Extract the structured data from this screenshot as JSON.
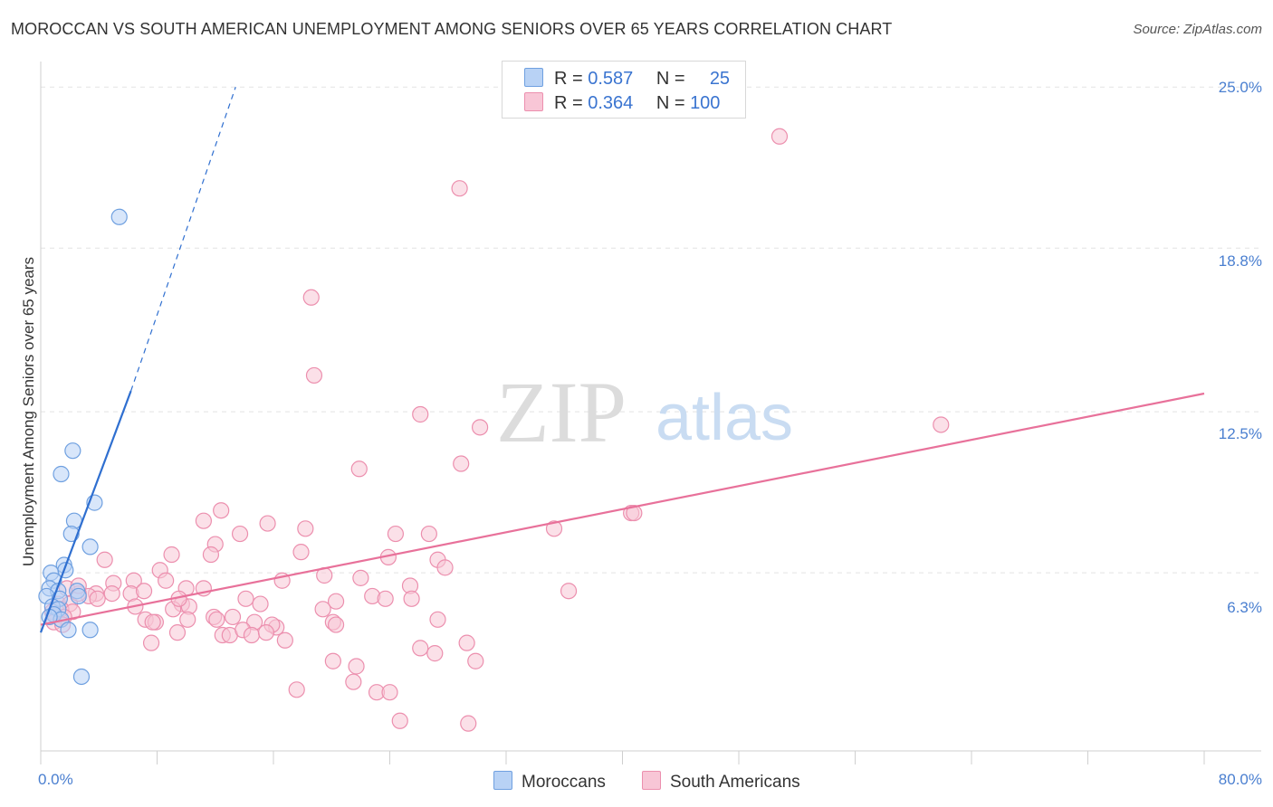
{
  "title": "MOROCCAN VS SOUTH AMERICAN UNEMPLOYMENT AMONG SENIORS OVER 65 YEARS CORRELATION CHART",
  "source": "Source: ZipAtlas.com",
  "watermark": {
    "zip": "ZIP",
    "atlas": "atlas"
  },
  "legend": {
    "r_label": "R =",
    "n_label": "N =",
    "moroccans": {
      "r": "0.587",
      "n": "25"
    },
    "south_americans": {
      "r": "0.364",
      "n": "100"
    }
  },
  "colors": {
    "moroccans_fill": "#b8d2f5",
    "moroccans_stroke": "#6fa0e0",
    "moroccans_line": "#2f6fd0",
    "south_americans_fill": "#f8c6d6",
    "south_americans_stroke": "#ec8fae",
    "south_americans_line": "#e8719a"
  },
  "chart_data": {
    "type": "scatter",
    "title": "MOROCCAN VS SOUTH AMERICAN UNEMPLOYMENT AMONG SENIORS OVER 65 YEARS CORRELATION CHART",
    "xlabel": "",
    "ylabel": "Unemployment Among Seniors over 65 years",
    "xlim": [
      0,
      80
    ],
    "ylim": [
      0,
      25.6
    ],
    "x_tick_labels": [
      "0.0%",
      "80.0%"
    ],
    "y_ticks": [
      6.3,
      12.5,
      18.8,
      25.0
    ],
    "y_tick_labels": [
      "6.3%",
      "12.5%",
      "18.8%",
      "25.0%"
    ],
    "legend_position": "bottom-center",
    "series": [
      {
        "name": "Moroccans",
        "r": 0.587,
        "n": 25,
        "trend": {
          "x0": 0,
          "y0": 4.0,
          "x1": 6.2,
          "y1": 13.3,
          "dash_x1": 13.4,
          "dash_y1": 25.0
        },
        "points": [
          [
            5.4,
            20.0
          ],
          [
            2.2,
            11.0
          ],
          [
            1.4,
            10.1
          ],
          [
            3.7,
            9.0
          ],
          [
            2.3,
            8.3
          ],
          [
            2.1,
            7.8
          ],
          [
            3.4,
            7.3
          ],
          [
            1.6,
            6.6
          ],
          [
            1.7,
            6.4
          ],
          [
            0.7,
            6.3
          ],
          [
            0.9,
            6.0
          ],
          [
            0.6,
            5.7
          ],
          [
            1.2,
            5.6
          ],
          [
            2.5,
            5.6
          ],
          [
            0.4,
            5.4
          ],
          [
            1.3,
            5.3
          ],
          [
            2.6,
            5.4
          ],
          [
            0.8,
            5.0
          ],
          [
            1.2,
            4.9
          ],
          [
            0.9,
            4.7
          ],
          [
            1.4,
            4.5
          ],
          [
            0.6,
            4.6
          ],
          [
            1.9,
            4.1
          ],
          [
            3.4,
            4.1
          ],
          [
            2.8,
            2.3
          ]
        ]
      },
      {
        "name": "South Americans",
        "r": 0.364,
        "n": 100,
        "trend": {
          "x0": 0,
          "y0": 4.3,
          "x1": 80,
          "y1": 13.2
        },
        "points": [
          [
            50.8,
            23.1
          ],
          [
            28.8,
            21.1
          ],
          [
            18.6,
            16.9
          ],
          [
            18.8,
            13.9
          ],
          [
            26.1,
            12.4
          ],
          [
            30.2,
            11.9
          ],
          [
            61.9,
            12.0
          ],
          [
            21.9,
            10.3
          ],
          [
            28.9,
            10.5
          ],
          [
            12.4,
            8.7
          ],
          [
            11.2,
            8.3
          ],
          [
            15.6,
            8.2
          ],
          [
            13.7,
            7.8
          ],
          [
            18.2,
            8.0
          ],
          [
            24.4,
            7.8
          ],
          [
            26.7,
            7.8
          ],
          [
            35.3,
            8.0
          ],
          [
            40.6,
            8.6
          ],
          [
            40.8,
            8.6
          ],
          [
            12.0,
            7.4
          ],
          [
            9.0,
            7.0
          ],
          [
            11.7,
            7.0
          ],
          [
            17.9,
            7.1
          ],
          [
            23.9,
            6.9
          ],
          [
            27.3,
            6.8
          ],
          [
            27.8,
            6.5
          ],
          [
            4.4,
            6.8
          ],
          [
            8.2,
            6.4
          ],
          [
            8.6,
            6.0
          ],
          [
            5.0,
            5.9
          ],
          [
            6.4,
            6.0
          ],
          [
            16.6,
            6.0
          ],
          [
            19.5,
            6.2
          ],
          [
            22.0,
            6.1
          ],
          [
            25.4,
            5.8
          ],
          [
            36.3,
            5.6
          ],
          [
            10.0,
            5.7
          ],
          [
            11.2,
            5.7
          ],
          [
            3.8,
            5.5
          ],
          [
            4.9,
            5.5
          ],
          [
            6.2,
            5.5
          ],
          [
            7.1,
            5.6
          ],
          [
            14.1,
            5.3
          ],
          [
            20.3,
            5.2
          ],
          [
            22.8,
            5.4
          ],
          [
            23.7,
            5.3
          ],
          [
            25.5,
            5.3
          ],
          [
            9.7,
            5.1
          ],
          [
            15.1,
            5.1
          ],
          [
            19.4,
            4.9
          ],
          [
            6.5,
            5.0
          ],
          [
            9.1,
            4.9
          ],
          [
            10.2,
            5.0
          ],
          [
            1.2,
            5.1
          ],
          [
            2.0,
            5.1
          ],
          [
            3.3,
            5.4
          ],
          [
            2.6,
            5.5
          ],
          [
            3.9,
            5.3
          ],
          [
            1.4,
            4.9
          ],
          [
            2.2,
            4.8
          ],
          [
            0.8,
            4.8
          ],
          [
            1.6,
            4.6
          ],
          [
            0.9,
            4.4
          ],
          [
            1.5,
            4.3
          ],
          [
            1.8,
            5.7
          ],
          [
            2.6,
            5.8
          ],
          [
            7.2,
            4.5
          ],
          [
            7.9,
            4.4
          ],
          [
            10.1,
            4.5
          ],
          [
            11.9,
            4.6
          ],
          [
            13.2,
            4.6
          ],
          [
            14.7,
            4.4
          ],
          [
            16.2,
            4.2
          ],
          [
            15.9,
            4.3
          ],
          [
            20.1,
            4.4
          ],
          [
            20.3,
            4.3
          ],
          [
            27.3,
            4.5
          ],
          [
            7.7,
            4.4
          ],
          [
            9.4,
            4.0
          ],
          [
            12.5,
            3.9
          ],
          [
            13.0,
            3.9
          ],
          [
            13.9,
            4.1
          ],
          [
            14.5,
            3.9
          ],
          [
            15.5,
            4.0
          ],
          [
            16.8,
            3.7
          ],
          [
            7.6,
            3.6
          ],
          [
            26.1,
            3.4
          ],
          [
            27.1,
            3.2
          ],
          [
            29.3,
            3.6
          ],
          [
            20.1,
            2.9
          ],
          [
            21.7,
            2.7
          ],
          [
            29.9,
            2.9
          ],
          [
            21.5,
            2.1
          ],
          [
            17.6,
            1.8
          ],
          [
            23.1,
            1.7
          ],
          [
            24.0,
            1.7
          ],
          [
            24.7,
            0.6
          ],
          [
            29.4,
            0.5
          ],
          [
            9.5,
            5.3
          ],
          [
            12.1,
            4.5
          ]
        ]
      }
    ]
  },
  "y_axis": {
    "label": "Unemployment Among Seniors over 65 years",
    "ticks": [
      "25.0%",
      "18.8%",
      "12.5%",
      "6.3%"
    ]
  },
  "x_axis": {
    "min_label": "0.0%",
    "max_label": "80.0%"
  },
  "bottom_legend": {
    "moroccans": "Moroccans",
    "south_americans": "South Americans"
  }
}
